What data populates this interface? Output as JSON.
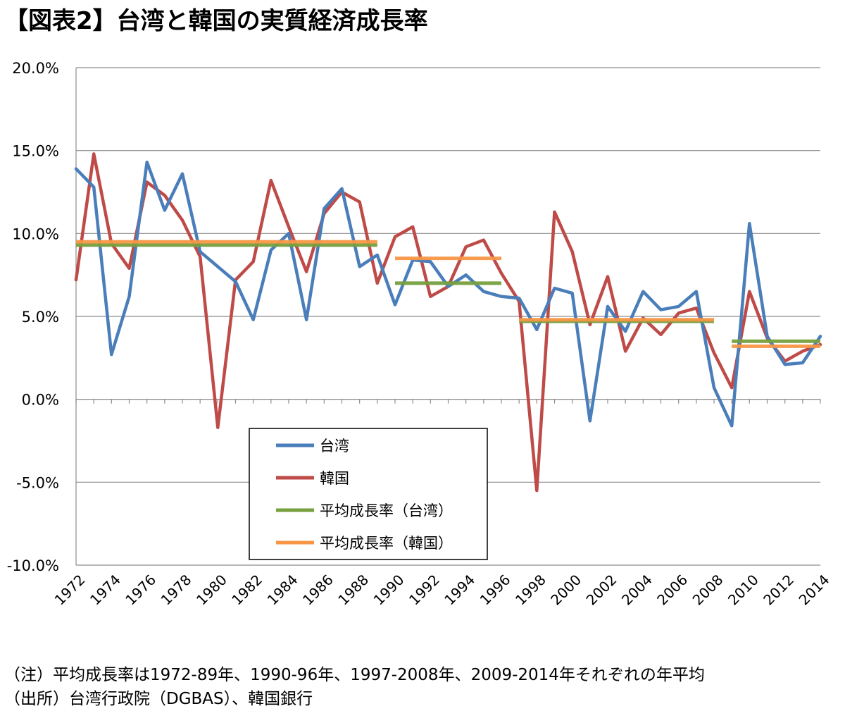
{
  "title": "【図表2】台湾と韓国の実質経済成長率",
  "notes": {
    "note": "（注）平均成長率は1972-89年、1990-96年、1997-2008年、2009-2014年それぞれの年平均",
    "source": "（出所）台湾行政院（DGBAS）、韓国銀行"
  },
  "chart_data": {
    "type": "line",
    "x": [
      1972,
      1973,
      1974,
      1975,
      1976,
      1977,
      1978,
      1979,
      1980,
      1981,
      1982,
      1983,
      1984,
      1985,
      1986,
      1987,
      1988,
      1989,
      1990,
      1991,
      1992,
      1993,
      1994,
      1995,
      1996,
      1997,
      1998,
      1999,
      2000,
      2001,
      2002,
      2003,
      2004,
      2005,
      2006,
      2007,
      2008,
      2009,
      2010,
      2011,
      2012,
      2013,
      2014
    ],
    "x_tick_labels": [
      "1972",
      "1974",
      "1976",
      "1978",
      "1980",
      "1982",
      "1984",
      "1986",
      "1988",
      "1990",
      "1992",
      "1994",
      "1996",
      "1998",
      "2000",
      "2002",
      "2004",
      "2006",
      "2008",
      "2010",
      "2012",
      "2014"
    ],
    "y_tick_labels": [
      "20.0%",
      "15.0%",
      "10.0%",
      "5.0%",
      "0.0%",
      "-5.0%",
      "-10.0%"
    ],
    "ylim": [
      -10,
      20
    ],
    "grid": "horizontal",
    "legend_position": "bottom-center",
    "series": [
      {
        "name": "台湾",
        "color": "#4a7ebb",
        "values": [
          13.9,
          12.8,
          2.7,
          6.2,
          14.3,
          11.4,
          13.6,
          8.9,
          8.0,
          7.1,
          4.8,
          9.0,
          10.0,
          4.8,
          11.5,
          12.7,
          8.0,
          8.7,
          5.7,
          8.4,
          8.3,
          6.8,
          7.5,
          6.5,
          6.2,
          6.1,
          4.2,
          6.7,
          6.4,
          -1.3,
          5.6,
          4.1,
          6.5,
          5.4,
          5.6,
          6.5,
          0.7,
          -1.6,
          10.6,
          3.8,
          2.1,
          2.2,
          3.8
        ]
      },
      {
        "name": "韓国",
        "color": "#be4b48",
        "values": [
          7.2,
          14.8,
          9.4,
          7.9,
          13.1,
          12.3,
          10.8,
          8.6,
          -1.7,
          7.2,
          8.3,
          13.2,
          10.4,
          7.7,
          11.2,
          12.5,
          11.9,
          7.0,
          9.8,
          10.4,
          6.2,
          6.8,
          9.2,
          9.6,
          7.6,
          5.9,
          -5.5,
          11.3,
          8.9,
          4.5,
          7.4,
          2.9,
          4.9,
          3.9,
          5.2,
          5.5,
          2.8,
          0.7,
          6.5,
          3.7,
          2.3,
          2.9,
          3.3
        ]
      },
      {
        "name": "平均成長率（台湾）",
        "color": "#77a03e",
        "segments": [
          {
            "from": 1972,
            "to": 1989,
            "value": 9.3
          },
          {
            "from": 1990,
            "to": 1996,
            "value": 7.0
          },
          {
            "from": 1997,
            "to": 2008,
            "value": 4.7
          },
          {
            "from": 2009,
            "to": 2014,
            "value": 3.5
          }
        ]
      },
      {
        "name": "平均成長率（韓国）",
        "color": "#f79646",
        "segments": [
          {
            "from": 1972,
            "to": 1989,
            "value": 9.5
          },
          {
            "from": 1990,
            "to": 1996,
            "value": 8.5
          },
          {
            "from": 1997,
            "to": 2008,
            "value": 4.8
          },
          {
            "from": 2009,
            "to": 2014,
            "value": 3.2
          }
        ]
      }
    ]
  }
}
